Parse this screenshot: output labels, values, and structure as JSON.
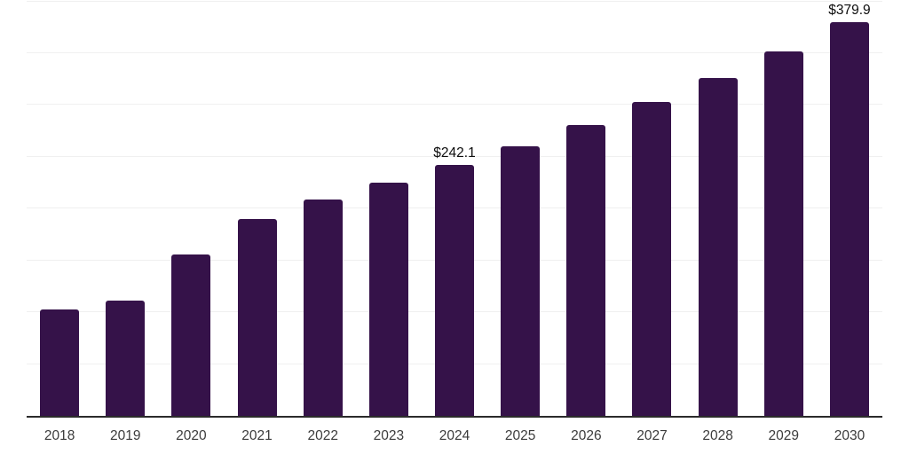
{
  "chart_data": {
    "type": "bar",
    "categories": [
      "2018",
      "2019",
      "2020",
      "2021",
      "2022",
      "2023",
      "2024",
      "2025",
      "2026",
      "2027",
      "2028",
      "2029",
      "2030"
    ],
    "values": [
      103.0,
      111.6,
      155.7,
      190.0,
      209.2,
      225.0,
      242.1,
      260.0,
      280.6,
      302.8,
      325.9,
      351.6,
      379.9
    ],
    "data_labels": {
      "2024": "$242.1",
      "2030": "$379.9"
    },
    "value_prefix": "$",
    "ylim": [
      0,
      400
    ],
    "gridline_interval": 50,
    "grid": "horizontal",
    "legend": "none",
    "y_axis_tick_labels": "none",
    "colors": {
      "bar": "#351249",
      "axis_line": "#2b2b2b",
      "gridline": "#f0f0f0",
      "tick_label": "#3c3c3c",
      "data_label": "#0d0d0d",
      "background": "#ffffff"
    }
  }
}
